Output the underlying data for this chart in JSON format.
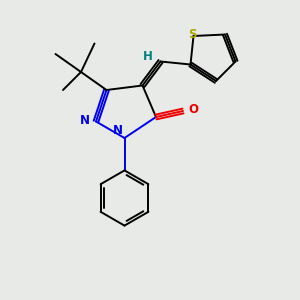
{
  "background_color": "#e8eae8",
  "atom_colors": {
    "N": "#0000ee",
    "O": "#ee0000",
    "S": "#aaaa00",
    "H": "#008080",
    "C": "#000000"
  },
  "figsize": [
    3.0,
    3.0
  ],
  "dpi": 100
}
